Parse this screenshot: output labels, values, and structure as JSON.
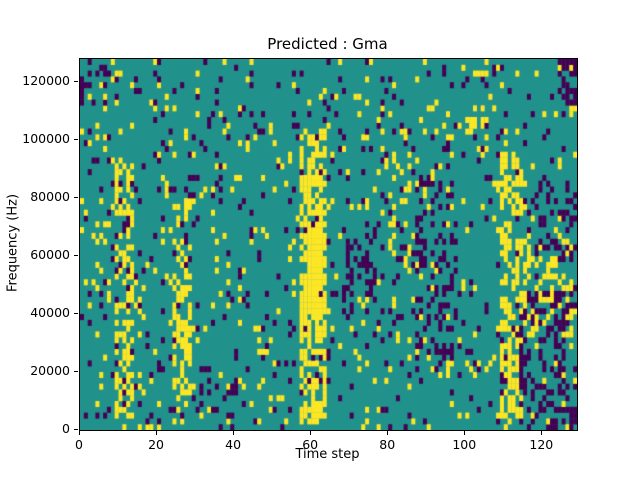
{
  "figure": {
    "background": "#ffffff"
  },
  "chart_data": {
    "type": "heatmap",
    "title": "Predicted : Gma",
    "xlabel": "Time step",
    "ylabel": "Frequency (Hz)",
    "x_range": [
      0,
      129
    ],
    "y_range": [
      0,
      128000
    ],
    "x_ticks": [
      0,
      20,
      40,
      60,
      80,
      100,
      120
    ],
    "x_tick_labels": [
      "0",
      "20",
      "40",
      "60",
      "80",
      "100",
      "120"
    ],
    "y_ticks": [
      0,
      20000,
      40000,
      60000,
      80000,
      100000,
      120000
    ],
    "y_tick_labels": [
      "0",
      "20000",
      "40000",
      "60000",
      "80000",
      "100000",
      "120000"
    ],
    "grid": {
      "cols": 129,
      "rows": 64
    },
    "legend": "none",
    "grid_lines": false,
    "colors": {
      "background": "#21918c",
      "high": "#fde725",
      "low": "#440154"
    },
    "seed": 1337,
    "base_density": {
      "yellow": 0.05,
      "purple": 0.05
    },
    "yellow_bands": [
      {
        "x0": 9,
        "x1": 13,
        "y0": 4000,
        "y1": 92000,
        "p": 0.45
      },
      {
        "x0": 3,
        "x1": 7,
        "y0": 48000,
        "y1": 72000,
        "p": 0.2
      },
      {
        "x0": 24,
        "x1": 28,
        "y0": 8000,
        "y1": 80000,
        "p": 0.35
      },
      {
        "x0": 57,
        "x1": 63,
        "y0": 2000,
        "y1": 104000,
        "p": 0.55
      },
      {
        "x0": 59,
        "x1": 62,
        "y0": 40000,
        "y1": 72000,
        "p": 0.85
      },
      {
        "x0": 80,
        "x1": 85,
        "y0": 56000,
        "y1": 96000,
        "p": 0.18
      },
      {
        "x0": 100,
        "x1": 105,
        "y0": 96000,
        "y1": 112000,
        "p": 0.25
      },
      {
        "x0": 109,
        "x1": 114,
        "y0": 4000,
        "y1": 96000,
        "p": 0.45
      },
      {
        "x0": 115,
        "x1": 127,
        "y0": 32000,
        "y1": 64000,
        "p": 0.22
      }
    ],
    "purple_bands": [
      {
        "x0": 68,
        "x1": 76,
        "y0": 40000,
        "y1": 72000,
        "p": 0.3
      },
      {
        "x0": 86,
        "x1": 96,
        "y0": 24000,
        "y1": 88000,
        "p": 0.18
      },
      {
        "x0": 114,
        "x1": 128,
        "y0": 0,
        "y1": 48000,
        "p": 0.3
      },
      {
        "x0": 118,
        "x1": 128,
        "y0": 56000,
        "y1": 88000,
        "p": 0.2
      },
      {
        "x0": 124,
        "x1": 129,
        "y0": 112000,
        "y1": 128000,
        "p": 0.5
      },
      {
        "x0": 0,
        "x1": 6,
        "y0": 112000,
        "y1": 126000,
        "p": 0.3
      },
      {
        "x0": 30,
        "x1": 40,
        "y0": 0,
        "y1": 16000,
        "p": 0.12
      }
    ]
  }
}
